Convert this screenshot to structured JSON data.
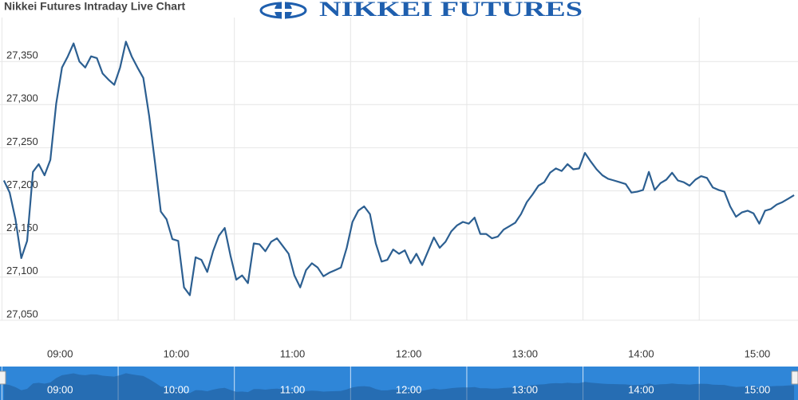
{
  "chart_data": {
    "type": "line",
    "title": "Nikkei Futures Intraday Live Chart",
    "logo": "NIKKEI FUTURES",
    "x": [
      511,
      514,
      517,
      520,
      523,
      526,
      529,
      532,
      535,
      538,
      541,
      544,
      547,
      550,
      553,
      556,
      559,
      562,
      565,
      568,
      571,
      574,
      577,
      580,
      583,
      586,
      589,
      592,
      595,
      598,
      601,
      604,
      607,
      610,
      613,
      616,
      619,
      622,
      625,
      628,
      631,
      634,
      637,
      640,
      643,
      646,
      649,
      652,
      655,
      658,
      661,
      664,
      667,
      670,
      673,
      676,
      679,
      682,
      685,
      688,
      691,
      694,
      697,
      700,
      703,
      706,
      709,
      712,
      715,
      718,
      721,
      724,
      727,
      730,
      733,
      736,
      739,
      742,
      745,
      748,
      751,
      754,
      757,
      760,
      763,
      766,
      769,
      772,
      775,
      778,
      781,
      784,
      787,
      790,
      793,
      796,
      799,
      802,
      805,
      808,
      811,
      814,
      817,
      820,
      823,
      826,
      829,
      832,
      835,
      838,
      841,
      844,
      847,
      850,
      853,
      856,
      859,
      862,
      865,
      868,
      871,
      874,
      877,
      880,
      883,
      886,
      889,
      892,
      895,
      898,
      901,
      904,
      907,
      910,
      913,
      916,
      919
    ],
    "series": [
      {
        "name": "Nikkei Futures",
        "color": "#2c5f91",
        "values": [
          27212,
          27198,
          27167,
          27122,
          27142,
          27222,
          27231,
          27218,
          27236,
          27301,
          27343,
          27356,
          27371,
          27350,
          27343,
          27356,
          27354,
          27336,
          27329,
          27323,
          27343,
          27373,
          27356,
          27343,
          27331,
          27287,
          27233,
          27176,
          27167,
          27144,
          27142,
          27088,
          27079,
          27123,
          27120,
          27106,
          27130,
          27148,
          27157,
          27125,
          27097,
          27102,
          27093,
          27139,
          27138,
          27130,
          27141,
          27145,
          27136,
          27127,
          27102,
          27088,
          27108,
          27116,
          27111,
          27101,
          27105,
          27108,
          27111,
          27134,
          27164,
          27177,
          27182,
          27173,
          27139,
          27118,
          27120,
          27132,
          27127,
          27131,
          27116,
          27127,
          27114,
          27130,
          27146,
          27134,
          27141,
          27153,
          27160,
          27164,
          27162,
          27169,
          27150,
          27150,
          27145,
          27147,
          27155,
          27159,
          27163,
          27173,
          27187,
          27196,
          27206,
          27210,
          27221,
          27226,
          27223,
          27231,
          27225,
          27226,
          27244,
          27234,
          27225,
          27218,
          27214,
          27212,
          27210,
          27208,
          27198,
          27199,
          27201,
          27222,
          27201,
          27209,
          27213,
          27221,
          27212,
          27210,
          27206,
          27213,
          27217,
          27215,
          27204,
          27201,
          27199,
          27182,
          27170,
          27175,
          27177,
          27174,
          27162,
          27177,
          27179,
          27184,
          27187,
          27191,
          27195
        ]
      }
    ],
    "xlim": [
      509,
      921
    ],
    "xticks": [
      {
        "value": 540,
        "label": "09:00"
      },
      {
        "value": 600,
        "label": "10:00"
      },
      {
        "value": 660,
        "label": "11:00"
      },
      {
        "value": 720,
        "label": "12:00"
      },
      {
        "value": 780,
        "label": "13:00"
      },
      {
        "value": 840,
        "label": "14:00"
      },
      {
        "value": 900,
        "label": "15:00"
      }
    ],
    "ylim": [
      27024,
      27401
    ],
    "yticks": [
      {
        "value": 27050,
        "label": "27,050"
      },
      {
        "value": 27100,
        "label": "27,100"
      },
      {
        "value": 27150,
        "label": "27,150"
      },
      {
        "value": 27200,
        "label": "27,200"
      },
      {
        "value": 27250,
        "label": "27,250"
      },
      {
        "value": 27300,
        "label": "27,300"
      },
      {
        "value": 27350,
        "label": "27,350"
      }
    ],
    "grid": true
  }
}
